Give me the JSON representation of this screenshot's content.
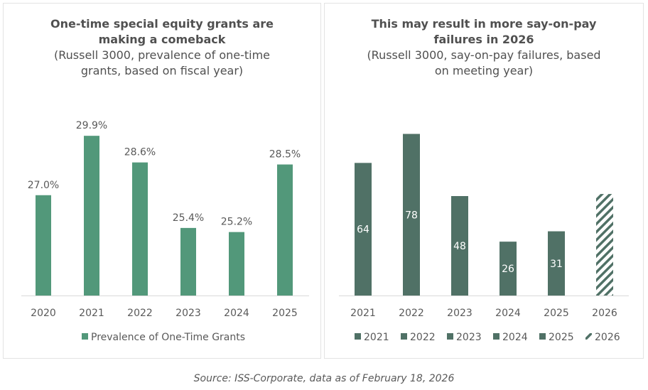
{
  "chart_data": [
    {
      "type": "bar",
      "title": "One-time special equity grants are making a comeback",
      "subtitle": "(Russell 3000, prevalence of one-time grants, based on fiscal year)",
      "title_lines": [
        "One-time special equity grants are",
        "making a comeback"
      ],
      "subtitle_lines": [
        "(Russell 3000, prevalence of one-time",
        "grants, based on fiscal year)"
      ],
      "categories": [
        "2020",
        "2021",
        "2022",
        "2023",
        "2024",
        "2025"
      ],
      "values": [
        27.0,
        29.9,
        28.6,
        25.4,
        25.2,
        28.5
      ],
      "data_labels": [
        "27.0%",
        "29.9%",
        "28.6%",
        "25.4%",
        "25.2%",
        "28.5%"
      ],
      "unit": "%",
      "xlabel": "",
      "ylabel": "",
      "ylim": [
        22.1,
        30.6
      ],
      "y_axis_visible": false,
      "grid": false,
      "legend": {
        "position": "bottom",
        "entries": [
          "Prevalence of One-Time Grants"
        ]
      },
      "series": [
        {
          "name": "Prevalence of One-Time Grants",
          "color": "#52987a"
        }
      ]
    },
    {
      "type": "bar",
      "title": "This may result in more say-on-pay failures in 2026",
      "subtitle": "(Russell 3000, say-on-pay failures, based on meeting year)",
      "title_lines": [
        "This may result in more say-on-pay",
        "failures in 2026"
      ],
      "subtitle_lines": [
        "(Russell 3000, say-on-pay failures, based",
        "on meeting year)"
      ],
      "categories": [
        "2021",
        "2022",
        "2023",
        "2024",
        "2025",
        "2026"
      ],
      "values": [
        64,
        78,
        48,
        26,
        31,
        49
      ],
      "data_labels": [
        "64",
        "78",
        "48",
        "26",
        "31",
        ""
      ],
      "bar_styles": [
        "solid",
        "solid",
        "solid",
        "solid",
        "solid",
        "hatched"
      ],
      "xlabel": "",
      "ylabel": "",
      "ylim": [
        0,
        84
      ],
      "y_axis_visible": false,
      "grid": false,
      "legend": {
        "position": "bottom",
        "entries": [
          "2021",
          "2022",
          "2023",
          "2024",
          "2025",
          "2026"
        ]
      },
      "color": "#507166"
    }
  ],
  "footer": {
    "source": "Source: ISS-Corporate, data as of February 18, 2026"
  }
}
